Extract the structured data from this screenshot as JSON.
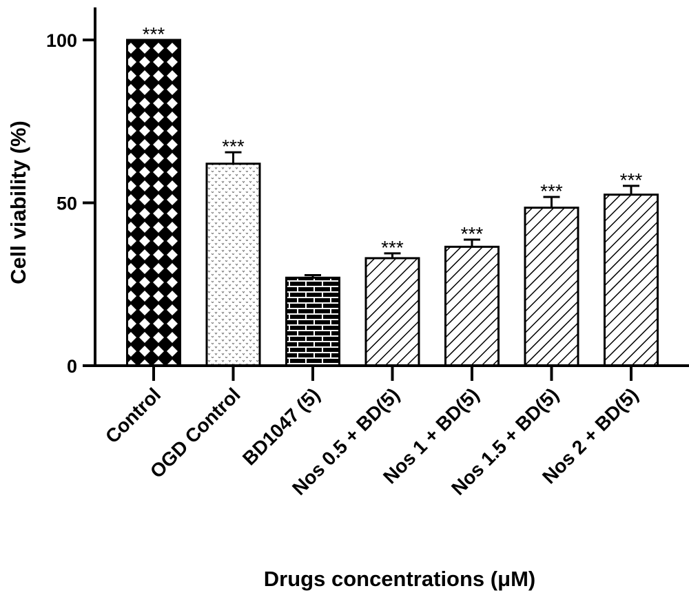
{
  "chart_data": {
    "type": "bar",
    "title": "",
    "xlabel": "Drugs concentrations (μM)",
    "ylabel": "Cell viability (%)",
    "ylim": [
      0,
      110
    ],
    "yticks": [
      0,
      50,
      100
    ],
    "ytick_labels": [
      "0",
      "50",
      "100"
    ],
    "categories": [
      "Control",
      "OGD Control",
      "BD1047 (5)",
      "Nos 0.5 + BD(5)",
      "Nos 1 + BD(5)",
      "Nos 1.5 + BD(5)",
      "Nos 2 + BD(5)"
    ],
    "values": [
      100,
      62,
      27,
      33,
      36.5,
      48.5,
      52.5
    ],
    "errors": [
      0,
      3.5,
      0.8,
      1.5,
      2.2,
      3.3,
      2.7
    ],
    "significance": [
      "***",
      "***",
      "",
      "***",
      "***",
      "***",
      "***"
    ],
    "patterns": [
      "crosshatch-dark",
      "dotted-light",
      "brick",
      "diagonal",
      "diagonal",
      "diagonal",
      "diagonal"
    ],
    "grid": false,
    "legend": "none"
  }
}
